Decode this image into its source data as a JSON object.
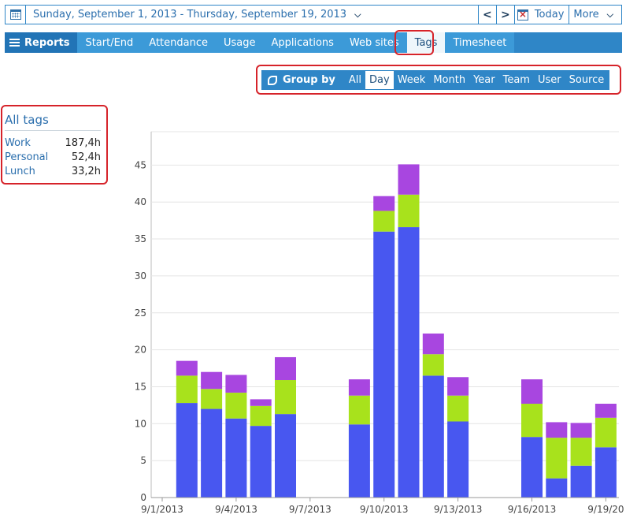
{
  "datebar": {
    "range": "Sunday, September 1, 2013 - Thursday, September 19, 2013",
    "prev": "<",
    "next": ">",
    "today": "Today",
    "more": "More"
  },
  "tabs": {
    "reports": "Reports",
    "items": [
      "Start/End",
      "Attendance",
      "Usage",
      "Applications",
      "Web sites",
      "Tags",
      "Timesheet"
    ],
    "active": "Tags"
  },
  "group_by": {
    "label": "Group by",
    "options": [
      "All",
      "Day",
      "Week",
      "Month",
      "Year",
      "Team",
      "User",
      "Source"
    ],
    "active": "Day"
  },
  "all_tags": {
    "title": "All tags",
    "rows": [
      {
        "name": "Work",
        "value": "187,4h",
        "color": "#4857f0"
      },
      {
        "name": "Personal",
        "value": "52,4h",
        "color": "#a8e21c"
      },
      {
        "name": "Lunch",
        "value": "33,2h",
        "color": "#a846e0"
      }
    ]
  },
  "chart_data": {
    "type": "bar",
    "stacked": true,
    "categories": [
      "9/1/2013",
      "9/2/2013",
      "9/3/2013",
      "9/4/2013",
      "9/5/2013",
      "9/6/2013",
      "9/7/2013",
      "9/8/2013",
      "9/9/2013",
      "9/10/2013",
      "9/11/2013",
      "9/12/2013",
      "9/13/2013",
      "9/14/2013",
      "9/15/2013",
      "9/16/2013",
      "9/17/2013",
      "9/18/2013",
      "9/19/2013"
    ],
    "x_tick_labels": [
      "9/1/2013",
      "9/4/2013",
      "9/7/2013",
      "9/10/2013",
      "9/13/2013",
      "9/16/2013",
      "9/19/20"
    ],
    "x_tick_indices": [
      0,
      3,
      6,
      9,
      12,
      15,
      18
    ],
    "series": [
      {
        "name": "Work",
        "color": "#4857f0",
        "values": [
          0,
          12.8,
          12.0,
          10.7,
          9.7,
          11.3,
          0,
          0,
          9.9,
          36.0,
          36.6,
          16.5,
          10.3,
          0,
          0,
          8.2,
          2.6,
          4.3,
          6.8
        ]
      },
      {
        "name": "Personal",
        "color": "#a8e21c",
        "values": [
          0,
          3.7,
          2.7,
          3.5,
          2.7,
          4.6,
          0,
          0,
          3.9,
          2.8,
          4.4,
          2.9,
          3.5,
          0,
          0,
          4.5,
          5.5,
          3.8,
          4.0
        ]
      },
      {
        "name": "Lunch",
        "color": "#a846e0",
        "values": [
          0,
          2.0,
          2.3,
          2.4,
          0.9,
          3.1,
          0,
          0,
          2.2,
          2.0,
          4.1,
          2.8,
          2.5,
          0,
          0,
          3.3,
          2.1,
          2.0,
          1.9
        ]
      }
    ],
    "yticks": [
      0,
      5,
      10,
      15,
      20,
      25,
      30,
      35,
      40,
      45
    ],
    "ylim": [
      0,
      49
    ],
    "grid": true
  }
}
